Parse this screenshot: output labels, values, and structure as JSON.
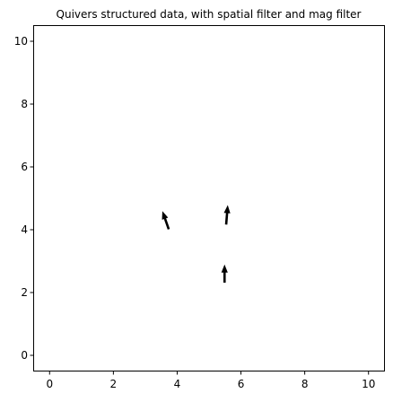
{
  "chart_data": {
    "type": "quiver",
    "title": "Quivers structured data, with spatial filter and mag filter",
    "xlabel": "",
    "ylabel": "",
    "xlim": [
      -0.5,
      10.5
    ],
    "ylim": [
      -0.5,
      10.5
    ],
    "xticks": [
      0,
      2,
      4,
      6,
      8,
      10
    ],
    "yticks": [
      0,
      2,
      4,
      6,
      8,
      10
    ],
    "grid": false,
    "arrow_color": "#000000",
    "arrows": [
      {
        "x": 3.75,
        "y": 4.0,
        "u": -0.2,
        "v": 0.58
      },
      {
        "x": 5.55,
        "y": 4.15,
        "u": 0.05,
        "v": 0.62
      },
      {
        "x": 5.5,
        "y": 2.3,
        "u": 0.0,
        "v": 0.58
      }
    ]
  }
}
